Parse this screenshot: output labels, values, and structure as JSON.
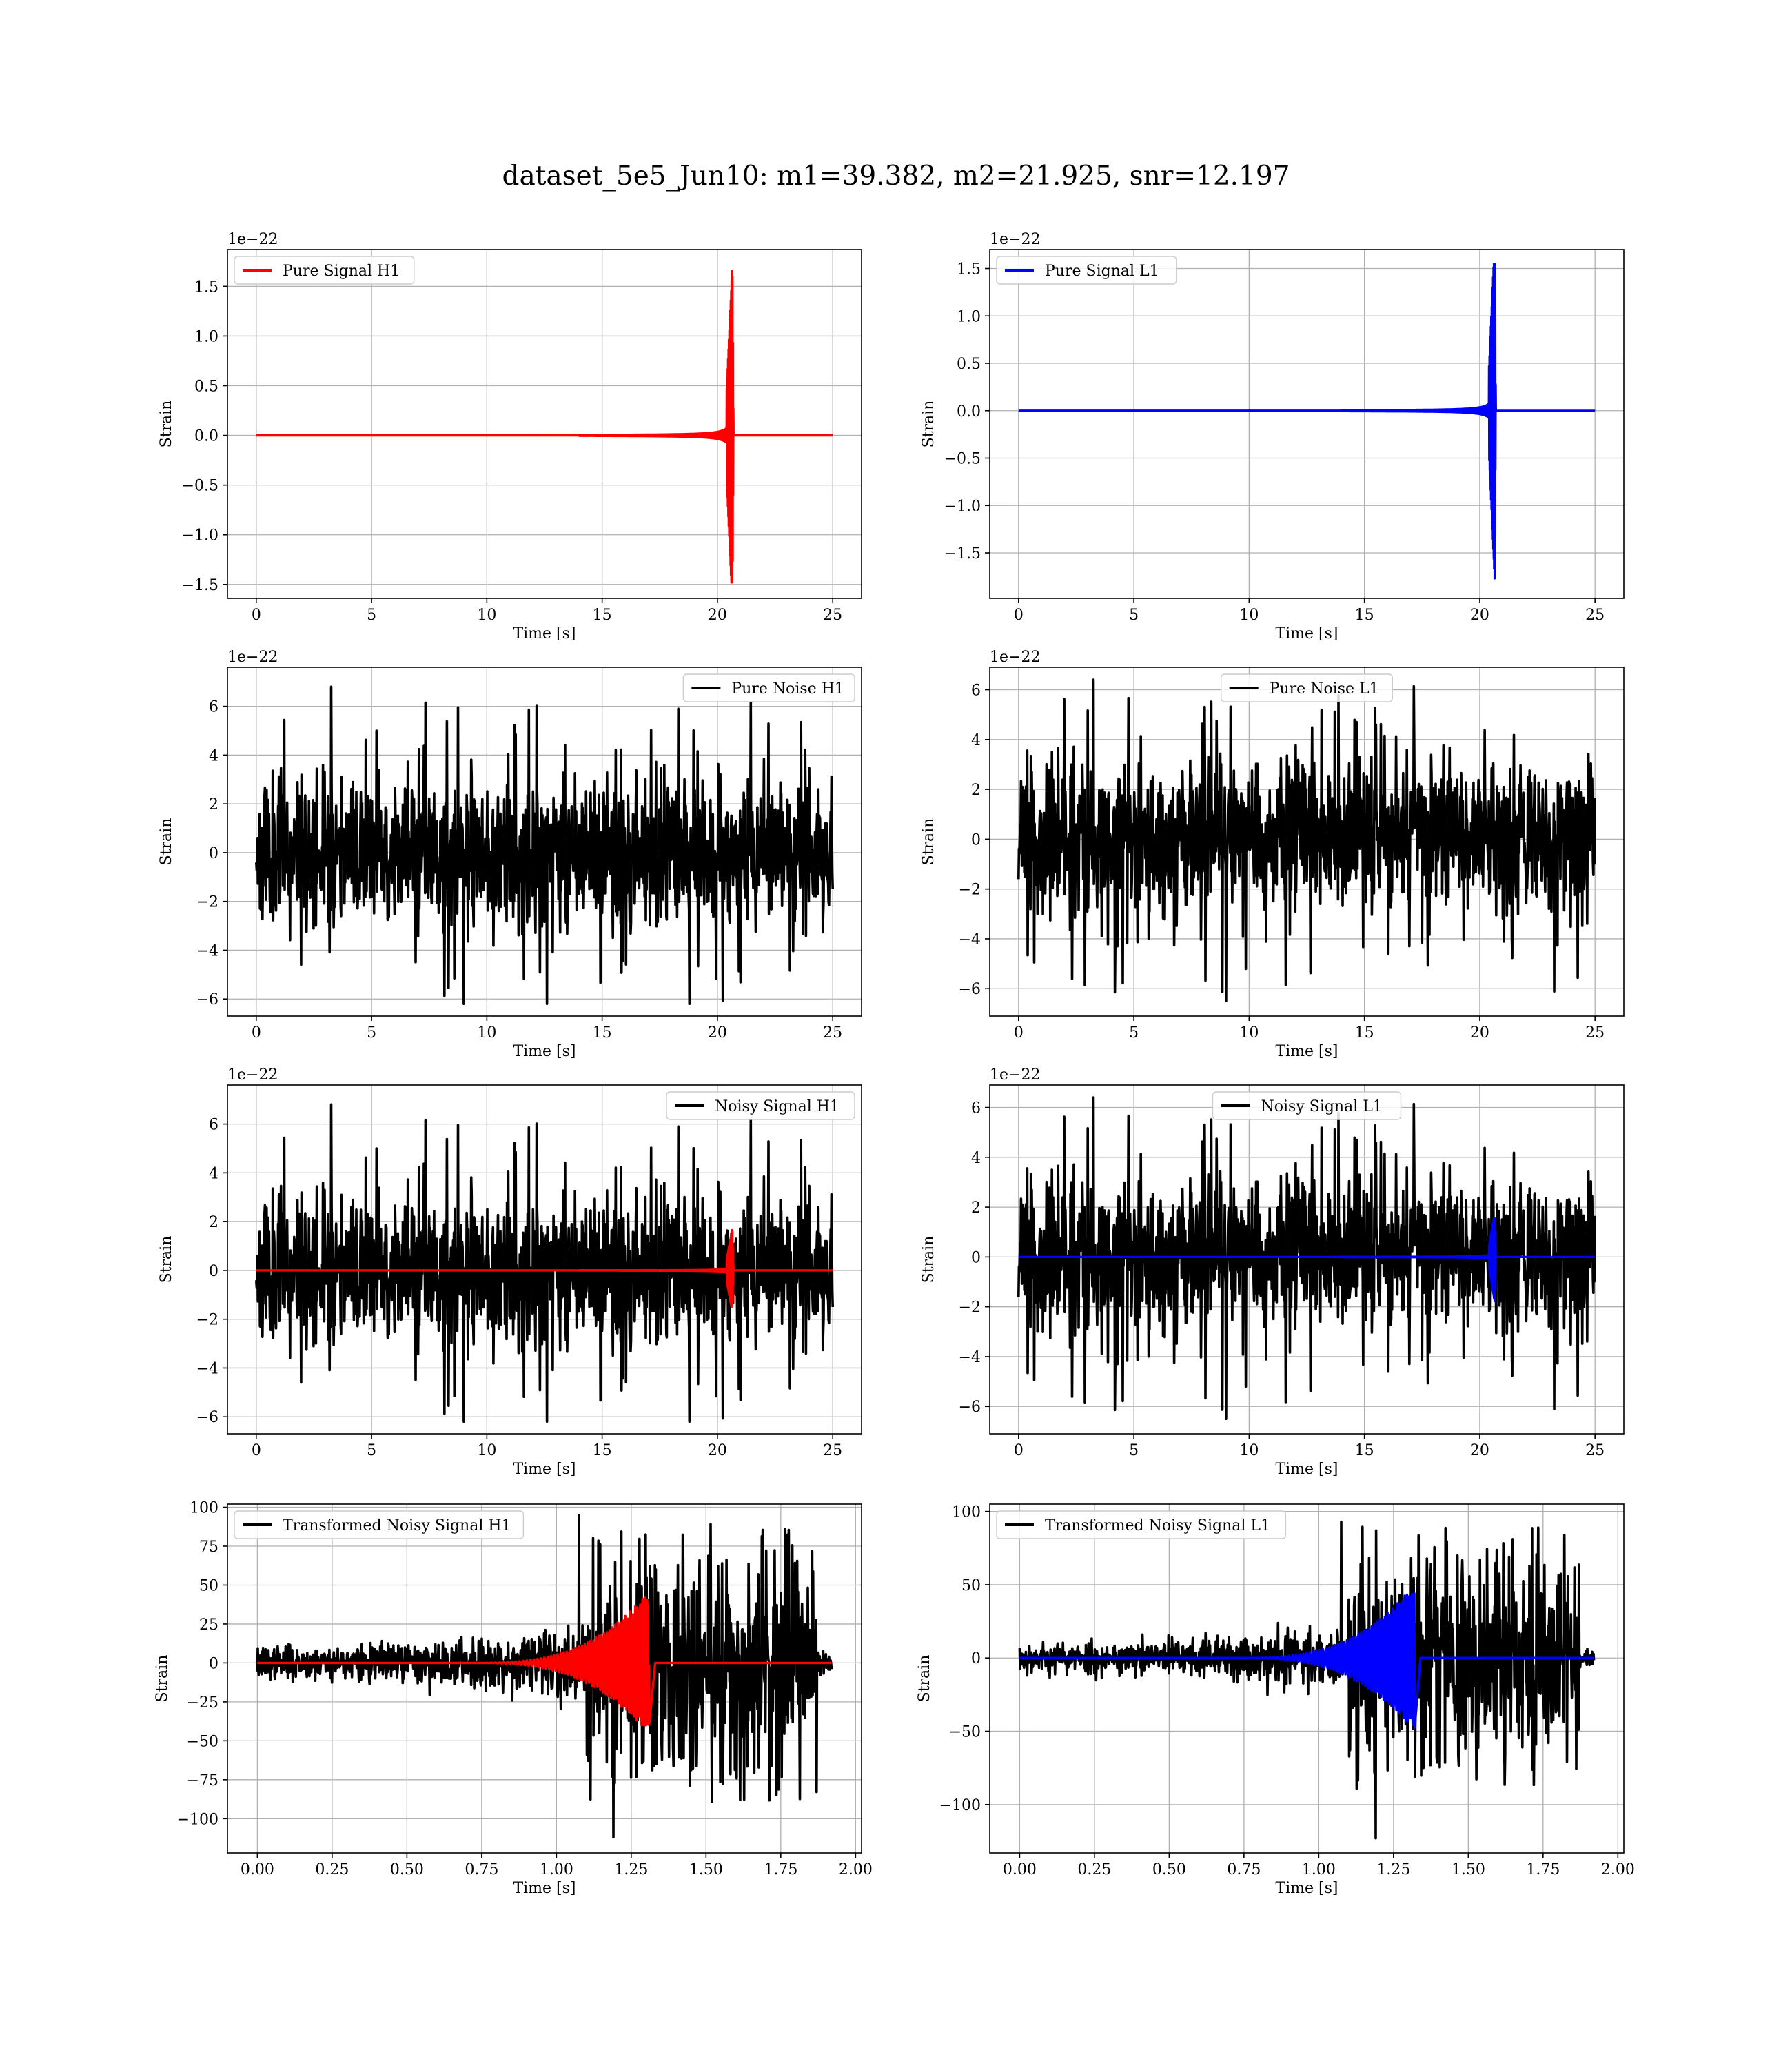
{
  "figure": {
    "title": "dataset_5e5_Jun10: m1=39.382, m2=21.925, snr=12.197"
  },
  "colors": {
    "h1": "#ff0000",
    "l1": "#0000ff",
    "noise": "#000000",
    "grid": "#b0b0b0"
  },
  "chart_data": [
    {
      "id": "pure-signal-h1",
      "type": "line",
      "xlabel": "Time [s]",
      "ylabel": "Strain",
      "offset_label": "1e−22",
      "xlim": [
        -1.25,
        26.25
      ],
      "ylim": [
        -1.64,
        1.87
      ],
      "xticks": [
        0,
        5,
        10,
        15,
        20,
        25
      ],
      "xtick_labels": [
        "0",
        "5",
        "10",
        "15",
        "20",
        "25"
      ],
      "yticks": [
        -1.5,
        -1.0,
        -0.5,
        0.0,
        0.5,
        1.0,
        1.5
      ],
      "ytick_labels": [
        "−1.5",
        "−1.0",
        "−0.5",
        "0.0",
        "0.5",
        "1.0",
        "1.5"
      ],
      "legend_position": "upper left",
      "series": [
        {
          "name": "Pure Signal H1",
          "color": "#ff0000",
          "kind": "chirp",
          "t_start": 0,
          "t_end": 25,
          "t_merge": 20.65,
          "peak_pos": 1.73,
          "peak_neg": -1.48,
          "plateau": 0.45,
          "baseline": 0.0
        }
      ]
    },
    {
      "id": "pure-signal-l1",
      "type": "line",
      "xlabel": "Time [s]",
      "ylabel": "Strain",
      "offset_label": "1e−22",
      "xlim": [
        -1.25,
        26.25
      ],
      "ylim": [
        -1.98,
        1.7
      ],
      "xticks": [
        0,
        5,
        10,
        15,
        20,
        25
      ],
      "xtick_labels": [
        "0",
        "5",
        "10",
        "15",
        "20",
        "25"
      ],
      "yticks": [
        -1.5,
        -1.0,
        -0.5,
        0.0,
        0.5,
        1.0,
        1.5
      ],
      "ytick_labels": [
        "−1.5",
        "−1.0",
        "−0.5",
        "0.0",
        "0.5",
        "1.0",
        "1.5"
      ],
      "legend_position": "upper left",
      "series": [
        {
          "name": "Pure Signal L1",
          "color": "#0000ff",
          "kind": "chirp",
          "t_start": 0,
          "t_end": 25,
          "t_merge": 20.65,
          "peak_pos": 1.55,
          "peak_neg": -1.8,
          "plateau": 0.45,
          "baseline": 0.0
        }
      ]
    },
    {
      "id": "pure-noise-h1",
      "type": "line",
      "xlabel": "Time [s]",
      "ylabel": "Strain",
      "offset_label": "1e−22",
      "xlim": [
        -1.25,
        26.25
      ],
      "ylim": [
        -6.7,
        7.6
      ],
      "xticks": [
        0,
        5,
        10,
        15,
        20,
        25
      ],
      "xtick_labels": [
        "0",
        "5",
        "10",
        "15",
        "20",
        "25"
      ],
      "yticks": [
        -6,
        -4,
        -2,
        0,
        2,
        4,
        6
      ],
      "ytick_labels": [
        "−6",
        "−4",
        "−2",
        "0",
        "2",
        "4",
        "6"
      ],
      "legend_position": "upper right",
      "series": [
        {
          "name": "Pure Noise H1",
          "color": "#000000",
          "kind": "noise",
          "t_start": 0,
          "t_end": 25,
          "max": 6.8,
          "min": -6.2,
          "seed": 11
        }
      ]
    },
    {
      "id": "pure-noise-l1",
      "type": "line",
      "xlabel": "Time [s]",
      "ylabel": "Strain",
      "offset_label": "1e−22",
      "xlim": [
        -1.25,
        26.25
      ],
      "ylim": [
        -7.1,
        6.9
      ],
      "xticks": [
        0,
        5,
        10,
        15,
        20,
        25
      ],
      "xtick_labels": [
        "0",
        "5",
        "10",
        "15",
        "20",
        "25"
      ],
      "yticks": [
        -6,
        -4,
        -2,
        0,
        2,
        4,
        6
      ],
      "ytick_labels": [
        "−6",
        "−4",
        "−2",
        "0",
        "2",
        "4",
        "6"
      ],
      "legend_position": "upper center",
      "series": [
        {
          "name": "Pure Noise L1",
          "color": "#000000",
          "kind": "noise",
          "t_start": 0,
          "t_end": 25,
          "max": 6.4,
          "min": -6.5,
          "seed": 23
        }
      ]
    },
    {
      "id": "noisy-signal-h1",
      "type": "line",
      "xlabel": "Time [s]",
      "ylabel": "Strain",
      "offset_label": "1e−22",
      "xlim": [
        -1.25,
        26.25
      ],
      "ylim": [
        -6.7,
        7.6
      ],
      "xticks": [
        0,
        5,
        10,
        15,
        20,
        25
      ],
      "xtick_labels": [
        "0",
        "5",
        "10",
        "15",
        "20",
        "25"
      ],
      "yticks": [
        -6,
        -4,
        -2,
        0,
        2,
        4,
        6
      ],
      "ytick_labels": [
        "−6",
        "−4",
        "−2",
        "0",
        "2",
        "4",
        "6"
      ],
      "legend_position": "upper right",
      "series": [
        {
          "name": "Noisy Signal H1",
          "color": "#000000",
          "kind": "noise",
          "t_start": 0,
          "t_end": 25,
          "max": 6.8,
          "min": -6.2,
          "seed": 11
        },
        {
          "name": "",
          "color": "#ff0000",
          "kind": "chirp",
          "t_start": 0,
          "t_end": 25,
          "t_merge": 20.65,
          "peak_pos": 1.73,
          "peak_neg": -1.48,
          "plateau": 0.45,
          "baseline": 0.0
        }
      ]
    },
    {
      "id": "noisy-signal-l1",
      "type": "line",
      "xlabel": "Time [s]",
      "ylabel": "Strain",
      "offset_label": "1e−22",
      "xlim": [
        -1.25,
        26.25
      ],
      "ylim": [
        -7.1,
        6.9
      ],
      "xticks": [
        0,
        5,
        10,
        15,
        20,
        25
      ],
      "xtick_labels": [
        "0",
        "5",
        "10",
        "15",
        "20",
        "25"
      ],
      "yticks": [
        -6,
        -4,
        -2,
        0,
        2,
        4,
        6
      ],
      "ytick_labels": [
        "−6",
        "−4",
        "−2",
        "0",
        "2",
        "4",
        "6"
      ],
      "legend_position": "upper center",
      "series": [
        {
          "name": "Noisy Signal L1",
          "color": "#000000",
          "kind": "noise",
          "t_start": 0,
          "t_end": 25,
          "max": 6.4,
          "min": -6.5,
          "seed": 23
        },
        {
          "name": "",
          "color": "#0000ff",
          "kind": "chirp",
          "t_start": 0,
          "t_end": 25,
          "t_merge": 20.65,
          "peak_pos": 1.55,
          "peak_neg": -1.8,
          "plateau": 0.45,
          "baseline": 0.0
        }
      ]
    },
    {
      "id": "transformed-noisy-signal-h1",
      "type": "line",
      "xlabel": "Time [s]",
      "ylabel": "Strain",
      "offset_label": "",
      "xlim": [
        -0.1,
        2.02
      ],
      "ylim": [
        -122,
        102
      ],
      "xticks": [
        0.0,
        0.25,
        0.5,
        0.75,
        1.0,
        1.25,
        1.5,
        1.75,
        2.0
      ],
      "xtick_labels": [
        "0.00",
        "0.25",
        "0.50",
        "0.75",
        "1.00",
        "1.25",
        "1.50",
        "1.75",
        "2.00"
      ],
      "yticks": [
        -100,
        -75,
        -50,
        -25,
        0,
        25,
        50,
        75,
        100
      ],
      "ytick_labels": [
        "−100",
        "−75",
        "−50",
        "−25",
        "0",
        "25",
        "50",
        "75",
        "100"
      ],
      "legend_position": "upper left",
      "series": [
        {
          "name": "Transformed Noisy Signal H1",
          "color": "#000000",
          "kind": "whitened",
          "t_start": 0,
          "t_end": 1.92,
          "t_gate": 1.87,
          "max": 95,
          "min": -112,
          "seed": 37
        },
        {
          "name": "",
          "color": "#ff0000",
          "kind": "whitened-chirp",
          "t_start": 0,
          "t_end": 1.92,
          "t_merge": 1.31,
          "peak_pos": 46,
          "peak_neg": -40
        }
      ]
    },
    {
      "id": "transformed-noisy-signal-l1",
      "type": "line",
      "xlabel": "Time [s]",
      "ylabel": "Strain",
      "offset_label": "",
      "xlim": [
        -0.1,
        2.02
      ],
      "ylim": [
        -133,
        105
      ],
      "xticks": [
        0.0,
        0.25,
        0.5,
        0.75,
        1.0,
        1.25,
        1.5,
        1.75,
        2.0
      ],
      "xtick_labels": [
        "0.00",
        "0.25",
        "0.50",
        "0.75",
        "1.00",
        "1.25",
        "1.50",
        "1.75",
        "2.00"
      ],
      "yticks": [
        -100,
        -50,
        0,
        50,
        100
      ],
      "ytick_labels": [
        "−100",
        "−50",
        "0",
        "50",
        "100"
      ],
      "legend_position": "upper left",
      "series": [
        {
          "name": "Transformed Noisy Signal L1",
          "color": "#000000",
          "kind": "whitened",
          "t_start": 0,
          "t_end": 1.92,
          "t_gate": 1.87,
          "max": 93,
          "min": -123,
          "seed": 53
        },
        {
          "name": "",
          "color": "#0000ff",
          "kind": "whitened-chirp",
          "t_start": 0,
          "t_end": 1.92,
          "t_merge": 1.32,
          "peak_pos": 44,
          "peak_neg": -50
        }
      ]
    }
  ]
}
